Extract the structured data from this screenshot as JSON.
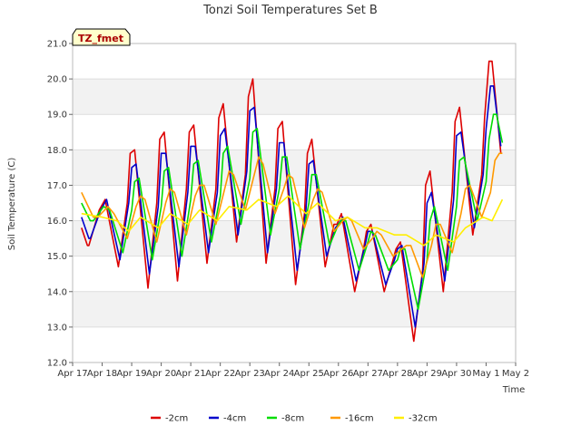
{
  "chart_data": {
    "type": "line",
    "title": "Tonzi Soil Temperatures Set B",
    "xlabel": "Time",
    "ylabel": "Soil Temperature (C)",
    "annotation": "TZ_fmet",
    "ylim": [
      12.0,
      21.0
    ],
    "yticks": [
      "12.0",
      "13.0",
      "14.0",
      "15.0",
      "16.0",
      "17.0",
      "18.0",
      "19.0",
      "20.0",
      "21.0"
    ],
    "xlim": [
      0,
      15
    ],
    "xticks": [
      "Apr 17",
      "Apr 18",
      "Apr 19",
      "Apr 20",
      "Apr 21",
      "Apr 22",
      "Apr 23",
      "Apr 24",
      "Apr 25",
      "Apr 26",
      "Apr 27",
      "Apr 28",
      "Apr 29",
      "Apr 30",
      "May 1",
      "May 2"
    ],
    "legend_position": "bottom",
    "series": [
      {
        "name": "-2cm",
        "color": "#dd0000",
        "x": [
          0.3,
          0.5,
          0.55,
          0.9,
          1.1,
          1.55,
          1.85,
          1.95,
          2.1,
          2.55,
          2.85,
          2.95,
          3.1,
          3.55,
          3.85,
          3.95,
          4.1,
          4.55,
          4.85,
          4.95,
          5.1,
          5.55,
          5.85,
          5.95,
          6.1,
          6.55,
          6.85,
          6.95,
          7.1,
          7.55,
          7.85,
          7.95,
          8.1,
          8.55,
          8.85,
          8.95,
          9.1,
          9.55,
          9.85,
          9.95,
          10.1,
          10.55,
          10.85,
          10.95,
          11.1,
          11.55,
          11.85,
          11.95,
          12.1,
          12.55,
          12.85,
          12.95,
          13.1,
          13.55,
          13.85,
          13.95,
          14.1,
          14.2,
          14.5
        ],
        "y": [
          15.8,
          15.3,
          15.3,
          16.3,
          16.6,
          14.7,
          16.5,
          17.9,
          18.0,
          14.1,
          16.5,
          18.3,
          18.5,
          14.3,
          16.9,
          18.5,
          18.7,
          14.8,
          16.9,
          18.9,
          19.3,
          15.4,
          17.3,
          19.5,
          20.0,
          14.8,
          16.9,
          18.6,
          18.8,
          14.2,
          16.2,
          17.9,
          18.3,
          14.7,
          15.9,
          15.9,
          16.2,
          14.0,
          15.2,
          15.7,
          15.9,
          14.0,
          14.9,
          15.2,
          15.4,
          12.6,
          14.6,
          17.0,
          17.4,
          14.0,
          16.8,
          18.8,
          19.2,
          15.6,
          17.3,
          18.9,
          20.5,
          20.5,
          17.9
        ]
      },
      {
        "name": "-4cm",
        "color": "#0000cc",
        "x": [
          0.3,
          0.55,
          0.6,
          0.95,
          1.15,
          1.6,
          1.9,
          2.0,
          2.15,
          2.6,
          2.9,
          3.0,
          3.15,
          3.6,
          3.9,
          4.0,
          4.15,
          4.6,
          4.9,
          5.0,
          5.15,
          5.6,
          5.9,
          6.0,
          6.15,
          6.6,
          6.9,
          7.0,
          7.15,
          7.6,
          7.9,
          8.0,
          8.15,
          8.6,
          8.9,
          9.0,
          9.15,
          9.6,
          9.9,
          10.0,
          10.15,
          10.6,
          10.9,
          11.0,
          11.15,
          11.6,
          11.9,
          12.0,
          12.15,
          12.6,
          12.9,
          13.0,
          13.15,
          13.6,
          13.9,
          14.0,
          14.15,
          14.25,
          14.5
        ],
        "y": [
          16.1,
          15.5,
          15.5,
          16.3,
          16.6,
          14.9,
          16.5,
          17.5,
          17.6,
          14.5,
          16.4,
          17.9,
          17.9,
          14.7,
          16.8,
          18.1,
          18.1,
          15.1,
          16.8,
          18.4,
          18.6,
          15.6,
          17.4,
          19.1,
          19.2,
          15.1,
          16.9,
          18.2,
          18.2,
          14.6,
          16.3,
          17.6,
          17.7,
          15.0,
          15.8,
          15.9,
          16.1,
          14.3,
          15.3,
          15.7,
          15.7,
          14.2,
          14.9,
          15.2,
          15.3,
          13.0,
          14.8,
          16.5,
          16.8,
          14.3,
          16.6,
          18.4,
          18.5,
          15.8,
          17.3,
          18.6,
          19.8,
          19.8,
          18.1
        ]
      },
      {
        "name": "-8cm",
        "color": "#00dd00",
        "x": [
          0.3,
          0.6,
          0.7,
          1.05,
          1.25,
          1.7,
          2.0,
          2.1,
          2.25,
          2.7,
          3.0,
          3.1,
          3.25,
          3.7,
          4.0,
          4.1,
          4.25,
          4.7,
          5.0,
          5.1,
          5.25,
          5.7,
          6.0,
          6.1,
          6.25,
          6.7,
          7.0,
          7.1,
          7.25,
          7.7,
          8.0,
          8.1,
          8.25,
          8.7,
          9.0,
          9.1,
          9.25,
          9.7,
          10.0,
          10.1,
          10.25,
          10.7,
          11.0,
          11.1,
          11.25,
          11.7,
          12.0,
          12.1,
          12.25,
          12.7,
          13.0,
          13.1,
          13.25,
          13.7,
          14.0,
          14.1,
          14.25,
          14.35,
          14.55
        ],
        "y": [
          16.5,
          16.0,
          16.0,
          16.4,
          16.3,
          15.1,
          16.3,
          17.1,
          17.2,
          14.9,
          16.4,
          17.4,
          17.5,
          15.0,
          16.6,
          17.6,
          17.7,
          15.4,
          16.7,
          17.9,
          18.1,
          15.9,
          17.2,
          18.5,
          18.6,
          15.6,
          16.9,
          17.8,
          17.8,
          15.2,
          16.5,
          17.3,
          17.3,
          15.3,
          15.9,
          16.0,
          16.0,
          14.6,
          15.4,
          15.7,
          15.6,
          14.6,
          14.9,
          15.2,
          15.2,
          13.5,
          14.9,
          16.0,
          16.4,
          14.6,
          16.4,
          17.7,
          17.8,
          16.0,
          17.1,
          18.3,
          19.0,
          19.0,
          18.2
        ]
      },
      {
        "name": "-16cm",
        "color": "#ff9900",
        "x": [
          0.3,
          0.7,
          0.85,
          1.2,
          1.4,
          1.85,
          2.15,
          2.3,
          2.45,
          2.85,
          3.15,
          3.3,
          3.45,
          3.85,
          4.15,
          4.3,
          4.45,
          4.85,
          5.15,
          5.3,
          5.45,
          5.85,
          6.15,
          6.3,
          6.45,
          6.85,
          7.15,
          7.3,
          7.45,
          7.85,
          8.15,
          8.3,
          8.45,
          8.85,
          9.15,
          9.3,
          9.45,
          9.85,
          10.15,
          10.3,
          10.45,
          10.85,
          11.15,
          11.3,
          11.45,
          11.85,
          12.15,
          12.3,
          12.45,
          12.85,
          13.15,
          13.3,
          13.45,
          13.85,
          14.15,
          14.3,
          14.45,
          14.55
        ],
        "y": [
          16.8,
          16.1,
          16.1,
          16.4,
          16.2,
          15.5,
          16.4,
          16.7,
          16.6,
          15.4,
          16.5,
          16.9,
          16.8,
          15.6,
          16.7,
          17.0,
          17.0,
          15.9,
          16.9,
          17.4,
          17.3,
          16.3,
          17.3,
          17.8,
          17.6,
          16.2,
          16.9,
          17.3,
          17.2,
          15.8,
          16.6,
          16.9,
          16.8,
          15.7,
          16.0,
          16.1,
          16.0,
          15.2,
          15.5,
          15.7,
          15.6,
          15.0,
          15.2,
          15.3,
          15.3,
          14.4,
          15.3,
          15.9,
          15.9,
          15.1,
          16.2,
          16.9,
          17.0,
          16.1,
          16.8,
          17.7,
          17.9,
          17.9
        ]
      },
      {
        "name": "-32cm",
        "color": "#ffee00",
        "x": [
          0.3,
          1.0,
          1.5,
          1.9,
          2.3,
          2.9,
          3.3,
          3.9,
          4.3,
          4.9,
          5.3,
          5.9,
          6.3,
          6.9,
          7.3,
          7.9,
          8.3,
          8.9,
          9.3,
          9.9,
          10.3,
          10.9,
          11.3,
          11.9,
          12.3,
          12.9,
          13.3,
          13.9,
          14.2,
          14.55
        ],
        "y": [
          16.2,
          16.1,
          16.0,
          15.7,
          16.1,
          15.8,
          16.2,
          15.9,
          16.3,
          16.0,
          16.4,
          16.3,
          16.6,
          16.4,
          16.7,
          16.2,
          16.5,
          16.0,
          16.1,
          15.8,
          15.8,
          15.6,
          15.6,
          15.3,
          15.6,
          15.4,
          15.8,
          16.1,
          16.0,
          16.6
        ]
      }
    ]
  }
}
